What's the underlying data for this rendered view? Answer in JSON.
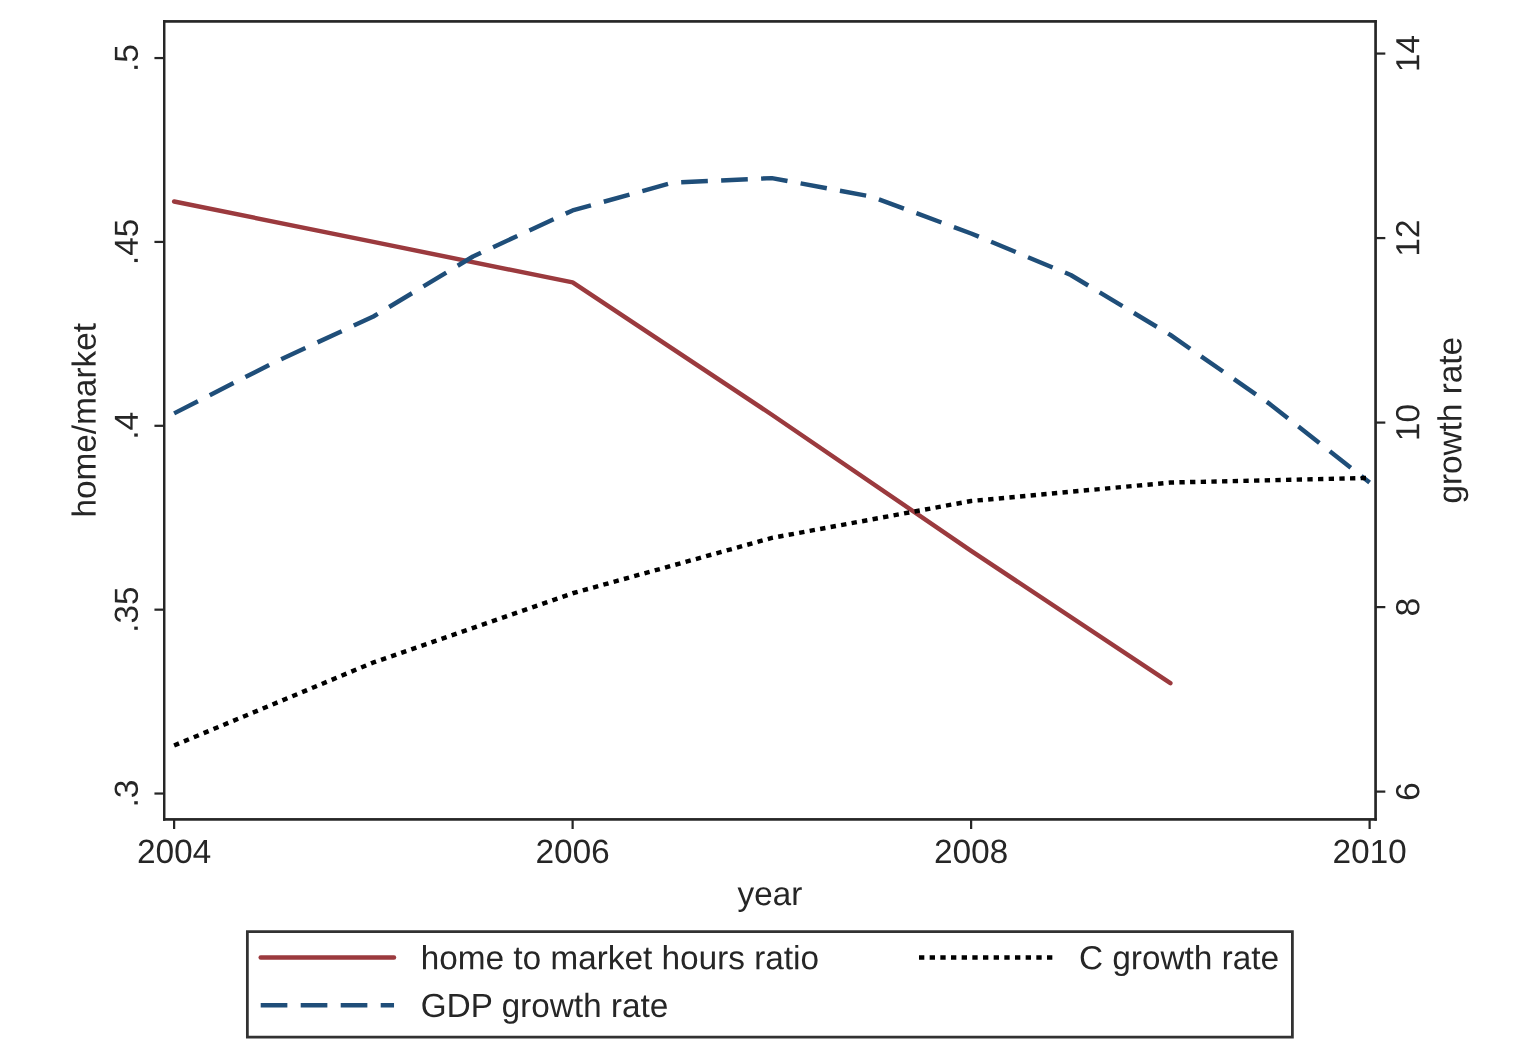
{
  "chart_data": {
    "type": "line",
    "xlabel": "year",
    "ylabel": "home/market",
    "y2label": "growth rate",
    "xlim": [
      2003.95,
      2010.03
    ],
    "xticks": [
      2004,
      2006,
      2008,
      2010
    ],
    "ylim": [
      0.293,
      0.51
    ],
    "yticks": [
      {
        "value": 0.3,
        "label": ".3"
      },
      {
        "value": 0.35,
        "label": ".35"
      },
      {
        "value": 0.4,
        "label": ".4"
      },
      {
        "value": 0.45,
        "label": ".45"
      },
      {
        "value": 0.5,
        "label": ".5"
      }
    ],
    "y2lim": [
      5.7,
      14.35
    ],
    "y2ticks": [
      6,
      8,
      10,
      12,
      14
    ],
    "grid": false,
    "legend": "bottom",
    "series": [
      {
        "name": "home to market hours ratio",
        "color": "#9b3a3e",
        "line_style": "solid",
        "x": [
          2004,
          2005,
          2006,
          2007,
          2008,
          2009
        ],
        "values": [
          0.461,
          0.45,
          0.439,
          0.403,
          0.366,
          0.33
        ]
      },
      {
        "name": "GDP growth rate",
        "color": "#1f4e79",
        "line_style": "dashed",
        "axis": "y2",
        "x": [
          2004,
          2004.5,
          2005,
          2005.5,
          2006,
          2006.5,
          2007,
          2007.5,
          2008,
          2008.5,
          2009,
          2009.5,
          2010
        ],
        "values": [
          10.1,
          10.65,
          11.15,
          11.8,
          12.3,
          12.6,
          12.65,
          12.45,
          12.05,
          11.6,
          10.95,
          10.2,
          9.35
        ]
      },
      {
        "name": "C growth rate",
        "color": "#000000",
        "line_style": "dotted",
        "axis": "y2",
        "x": [
          2004,
          2005,
          2006,
          2007,
          2008,
          2009,
          2010
        ],
        "values": [
          6.5,
          7.4,
          8.15,
          8.75,
          9.15,
          9.35,
          9.4
        ]
      }
    ]
  }
}
